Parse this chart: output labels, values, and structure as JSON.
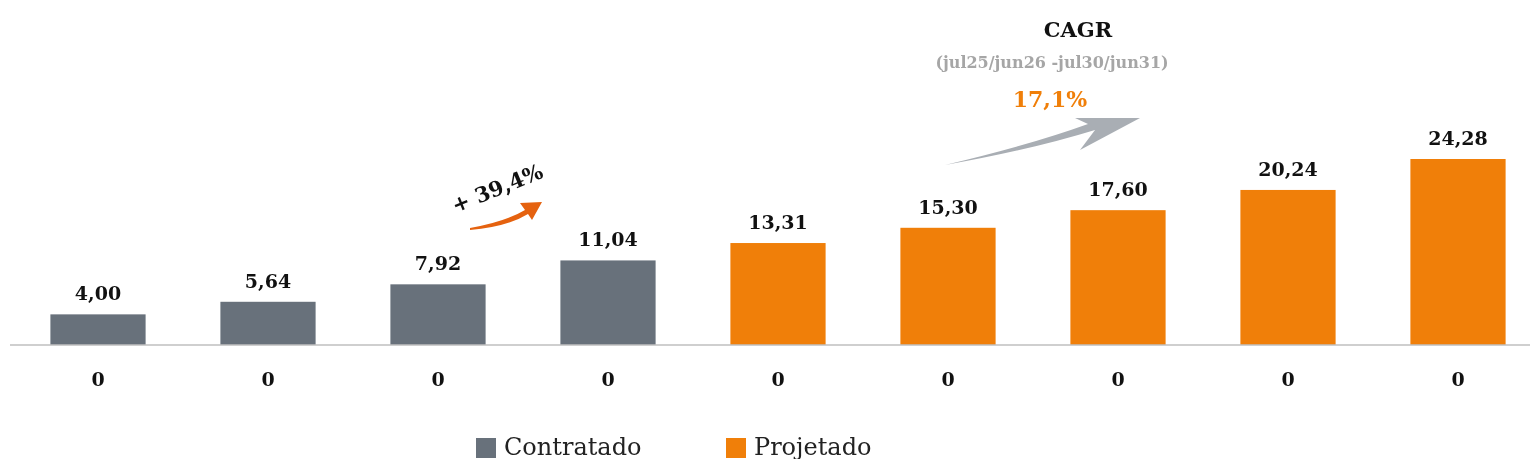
{
  "chart_data": {
    "type": "bar",
    "categories": [
      "0",
      "0",
      "0",
      "0",
      "0",
      "0",
      "0",
      "0",
      "0"
    ],
    "series": [
      {
        "name": "Contratado",
        "color": "#68717b",
        "values": [
          4.0,
          5.64,
          7.92,
          11.04,
          null,
          null,
          null,
          null,
          null
        ],
        "value_labels": [
          "4,00",
          "5,64",
          "7,92",
          "11,04",
          null,
          null,
          null,
          null,
          null
        ]
      },
      {
        "name": "Projetado",
        "color": "#f07f09",
        "values": [
          null,
          null,
          null,
          null,
          13.31,
          15.3,
          17.6,
          20.24,
          24.28
        ],
        "value_labels": [
          null,
          null,
          null,
          null,
          "13,31",
          "15,30",
          "17,60",
          "20,24",
          "24,28"
        ]
      }
    ],
    "annotations": [
      "CAGR",
      "(jul25/jun26 -jul30/jun31)",
      "17,1%",
      "+ 39,4%"
    ],
    "legend": "bottom"
  }
}
